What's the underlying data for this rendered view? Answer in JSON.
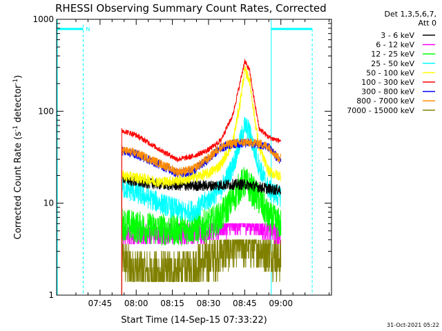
{
  "chart_data": {
    "type": "line",
    "title": "RHESSI Observing Summary Count Rates, Corrected",
    "xlabel": "Start Time (14-Sep-15 07:33:22)",
    "ylabel_main": "Corrected Count Rate (s",
    "ylabel_sup1": "-1",
    "ylabel_mid": " detector",
    "ylabel_sup2": "-1",
    "ylabel_end": ")",
    "y_scale": "log",
    "ylim": [
      1,
      1000
    ],
    "xlim_minutes": [
      -18,
      96
    ],
    "x_ticks": [
      {
        "label": "07:45",
        "minutes": 0
      },
      {
        "label": "08:00",
        "minutes": 15
      },
      {
        "label": "08:15",
        "minutes": 30
      },
      {
        "label": "08:30",
        "minutes": 45
      },
      {
        "label": "08:45",
        "minutes": 60
      },
      {
        "label": "09:00",
        "minutes": 75
      }
    ],
    "y_ticks": [
      {
        "label": "1",
        "value": 1
      },
      {
        "label": "10",
        "value": 10
      },
      {
        "label": "100",
        "value": 100
      },
      {
        "label": "1000",
        "value": 1000
      }
    ],
    "legend_header_1": "Det 1,3,5,6,7,",
    "legend_header_2": "Att 0",
    "legend_position": "right",
    "night_marker": "N",
    "data_start_minutes": 9,
    "data_end_minutes": 75,
    "series": [
      {
        "name": "3 - 6 keV",
        "color": "#000000",
        "points": [
          [
            9,
            19
          ],
          [
            15,
            17
          ],
          [
            25,
            16
          ],
          [
            35,
            15.5
          ],
          [
            45,
            15.5
          ],
          [
            55,
            16
          ],
          [
            60,
            16
          ],
          [
            66,
            15
          ],
          [
            72,
            14
          ],
          [
            74,
            14
          ]
        ]
      },
      {
        "name": "6 - 12 keV",
        "color": "#ff00ff",
        "points": [
          [
            9,
            4.5
          ],
          [
            15,
            4.5
          ],
          [
            25,
            4.5
          ],
          [
            35,
            4.7
          ],
          [
            45,
            5
          ],
          [
            52,
            5.5
          ],
          [
            58,
            6
          ],
          [
            62,
            6
          ],
          [
            66,
            5.5
          ],
          [
            72,
            5
          ],
          [
            74,
            4.5
          ]
        ]
      },
      {
        "name": "12 - 25 keV",
        "color": "#00ff00",
        "points": [
          [
            9,
            6
          ],
          [
            15,
            5.5
          ],
          [
            25,
            5.2
          ],
          [
            35,
            5.2
          ],
          [
            45,
            5.8
          ],
          [
            50,
            7
          ],
          [
            55,
            11
          ],
          [
            58,
            15
          ],
          [
            60,
            17
          ],
          [
            62,
            15
          ],
          [
            66,
            11
          ],
          [
            70,
            7
          ],
          [
            74,
            6
          ]
        ]
      },
      {
        "name": "25 - 50 keV",
        "color": "#00ffff",
        "points": [
          [
            9,
            15
          ],
          [
            15,
            13
          ],
          [
            25,
            10
          ],
          [
            35,
            8
          ],
          [
            40,
            8.5
          ],
          [
            45,
            11
          ],
          [
            50,
            14
          ],
          [
            55,
            25
          ],
          [
            58,
            45
          ],
          [
            60,
            70
          ],
          [
            62,
            60
          ],
          [
            64,
            38
          ],
          [
            66,
            25
          ],
          [
            70,
            14
          ],
          [
            74,
            12
          ]
        ]
      },
      {
        "name": "50 - 100 keV",
        "color": "#ffff00",
        "points": [
          [
            9,
            20
          ],
          [
            15,
            19
          ],
          [
            25,
            17
          ],
          [
            35,
            18
          ],
          [
            45,
            21
          ],
          [
            50,
            26
          ],
          [
            55,
            45
          ],
          [
            58,
            120
          ],
          [
            60,
            280
          ],
          [
            62,
            220
          ],
          [
            64,
            90
          ],
          [
            66,
            40
          ],
          [
            70,
            22
          ],
          [
            74,
            20
          ]
        ]
      },
      {
        "name": "100 - 300 keV",
        "color": "#ff0000",
        "points": [
          [
            9,
            62
          ],
          [
            15,
            55
          ],
          [
            25,
            38
          ],
          [
            32,
            30
          ],
          [
            38,
            32
          ],
          [
            45,
            38
          ],
          [
            50,
            48
          ],
          [
            55,
            90
          ],
          [
            58,
            200
          ],
          [
            60,
            350
          ],
          [
            62,
            280
          ],
          [
            64,
            130
          ],
          [
            66,
            65
          ],
          [
            70,
            52
          ],
          [
            74,
            48
          ]
        ]
      },
      {
        "name": "300 - 800 keV",
        "color": "#0000ff",
        "points": [
          [
            9,
            37
          ],
          [
            15,
            34
          ],
          [
            25,
            26
          ],
          [
            32,
            21
          ],
          [
            38,
            22
          ],
          [
            45,
            30
          ],
          [
            50,
            40
          ],
          [
            55,
            44
          ],
          [
            60,
            45
          ],
          [
            66,
            44
          ],
          [
            70,
            40
          ],
          [
            74,
            30
          ]
        ]
      },
      {
        "name": "800 - 7000 keV",
        "color": "#ff8c00",
        "points": [
          [
            9,
            38
          ],
          [
            15,
            35
          ],
          [
            25,
            27
          ],
          [
            32,
            22
          ],
          [
            38,
            23
          ],
          [
            45,
            31
          ],
          [
            50,
            41
          ],
          [
            55,
            45
          ],
          [
            60,
            46
          ],
          [
            66,
            45
          ],
          [
            70,
            41
          ],
          [
            74,
            31
          ]
        ]
      },
      {
        "name": "7000 - 15000 keV",
        "color": "#808000",
        "points": [
          [
            9,
            2.5
          ],
          [
            12,
            2
          ],
          [
            18,
            1.8
          ],
          [
            25,
            1.7
          ],
          [
            35,
            1.8
          ],
          [
            45,
            2.4
          ],
          [
            52,
            3.2
          ],
          [
            58,
            3.6
          ],
          [
            64,
            3.5
          ],
          [
            70,
            3
          ],
          [
            74,
            2.5
          ]
        ]
      }
    ]
  },
  "timestamp": "31-Oct-2021 05:22"
}
